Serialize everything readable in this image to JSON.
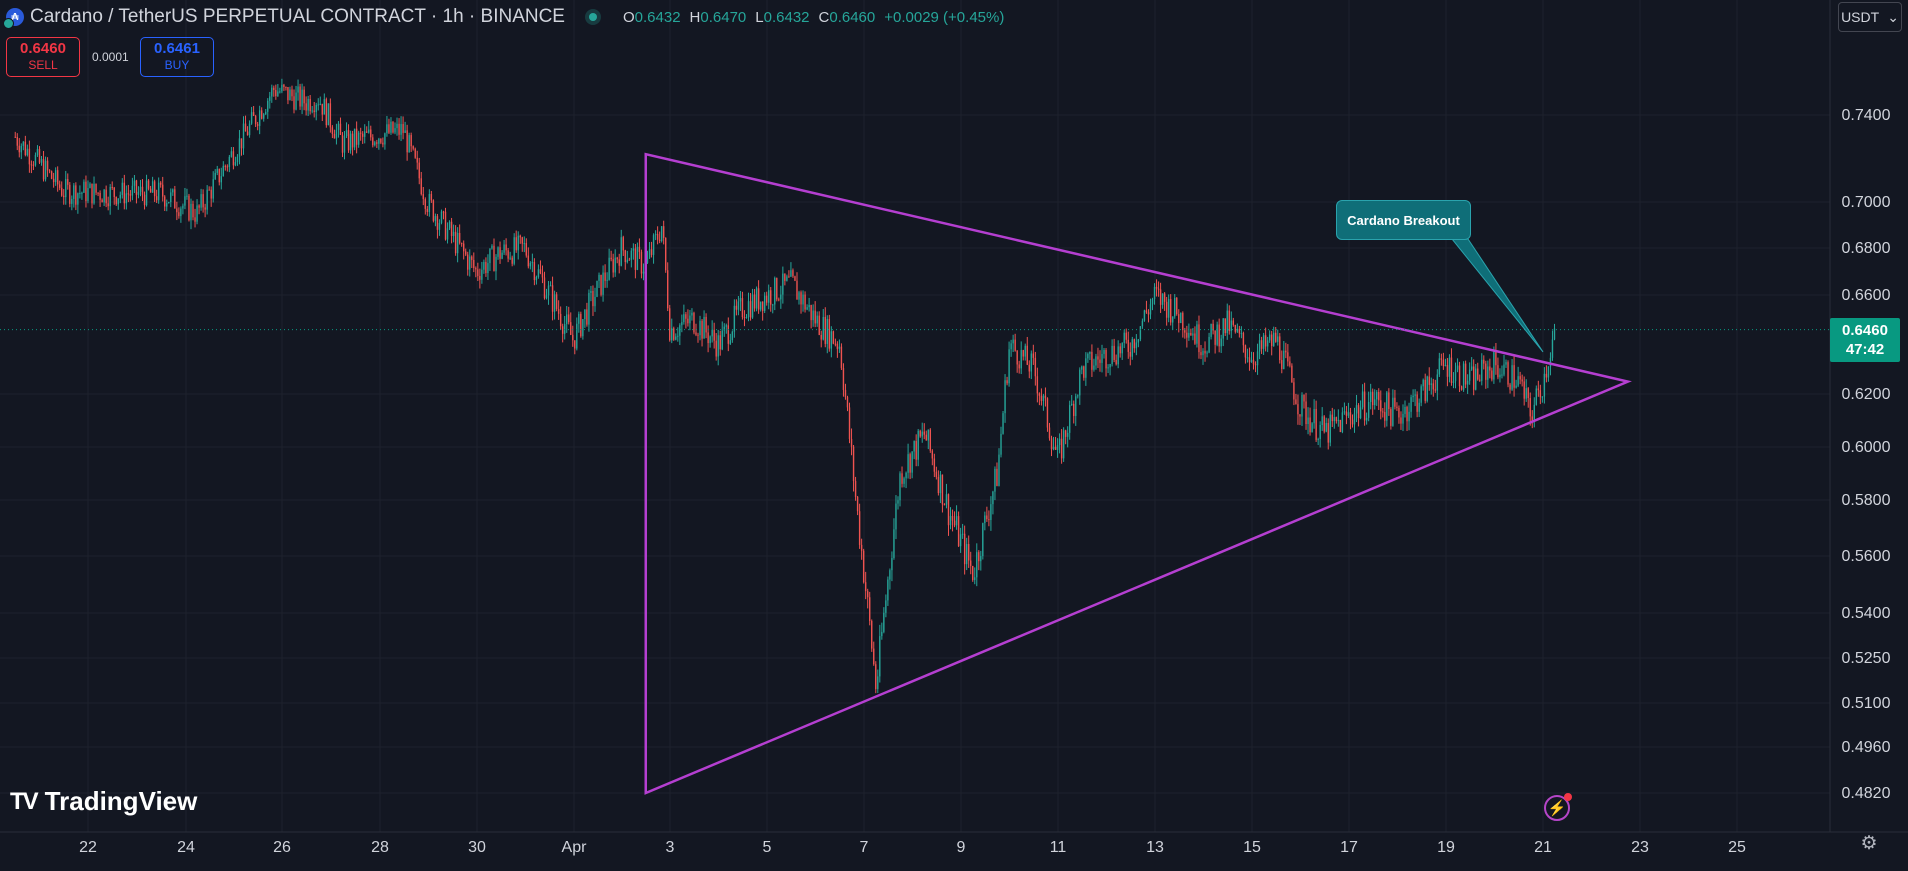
{
  "header": {
    "symbol_title": "Cardano / TetherUS PERPETUAL CONTRACT · 1h · BINANCE",
    "ohlc": [
      {
        "key": "O",
        "value": "0.6432"
      },
      {
        "key": "H",
        "value": "0.6470"
      },
      {
        "key": "L",
        "value": "0.6432"
      },
      {
        "key": "C",
        "value": "0.6460"
      }
    ],
    "change": "+0.0029 (+0.45%)"
  },
  "trade": {
    "sell_price": "0.6460",
    "sell_label": "SELL",
    "spread": "0.0001",
    "buy_price": "0.6461",
    "buy_label": "BUY"
  },
  "currency": {
    "label": "USDT",
    "chevron": "⌄"
  },
  "last_price": {
    "value": "0.6460",
    "countdown": "47:42"
  },
  "annotation": {
    "text": "Cardano Breakout"
  },
  "logo": {
    "text": "TradingView",
    "icon": "tradingview-logo"
  },
  "icons": {
    "alert": "lightning-alert-icon",
    "settings": "gear-icon"
  },
  "colors": {
    "background": "#131722",
    "up": "#26a69a",
    "down": "#ef5350",
    "pattern": "#b53fd1",
    "callout": "#0f6e78",
    "grid": "#1e222d"
  },
  "chart_data": {
    "type": "candlestick",
    "price_scale_labels": [
      "0.7400",
      "0.7000",
      "0.6800",
      "0.6600",
      "0.6200",
      "0.6000",
      "0.5800",
      "0.5600",
      "0.5400",
      "0.5250",
      "0.5100",
      "0.4960",
      "0.4820"
    ],
    "time_labels": [
      "22",
      "24",
      "26",
      "28",
      "30",
      "Apr",
      "3",
      "5",
      "7",
      "9",
      "11",
      "13",
      "15",
      "17",
      "19",
      "21",
      "23",
      "25"
    ],
    "last_price": 0.646,
    "price_path": [
      [
        "Mar 20 12:00",
        0.73
      ],
      [
        "Mar 21 12:00",
        0.705
      ],
      [
        "Mar 22 12:00",
        0.704
      ],
      [
        "Mar 23 12:00",
        0.704
      ],
      [
        "Mar 24 06:00",
        0.695
      ],
      [
        "Mar 24 22:00",
        0.72
      ],
      [
        "Mar 25 20:00",
        0.752
      ],
      [
        "Mar 26 12:00",
        0.746
      ],
      [
        "Mar 26 18:00",
        0.748
      ],
      [
        "Mar 27 06:00",
        0.727
      ],
      [
        "Mar 28 00:00",
        0.731
      ],
      [
        "Mar 28 12:00",
        0.733
      ],
      [
        "Mar 29 00:00",
        0.7
      ],
      [
        "Mar 30 00:00",
        0.67
      ],
      [
        "Mar 30 12:00",
        0.678
      ],
      [
        "Mar 31 00:00",
        0.68
      ],
      [
        "Mar 31 12:00",
        0.661
      ],
      [
        "Apr 1 00:00",
        0.642
      ],
      [
        "Apr 1 12:00",
        0.662
      ],
      [
        "Apr 2 00:00",
        0.68
      ],
      [
        "Apr 2 12:00",
        0.672
      ],
      [
        "Apr 2 20:00",
        0.69
      ],
      [
        "Apr 3 00:00",
        0.646
      ],
      [
        "Apr 3 12:00",
        0.65
      ],
      [
        "Apr 4 00:00",
        0.64
      ],
      [
        "Apr 4 12:00",
        0.655
      ],
      [
        "Apr 5 00:00",
        0.66
      ],
      [
        "Apr 5 12:00",
        0.665
      ],
      [
        "Apr 6 00:00",
        0.65
      ],
      [
        "Apr 6 12:00",
        0.64
      ],
      [
        "Apr 6 20:00",
        0.58
      ],
      [
        "Apr 7 06:00",
        0.515
      ],
      [
        "Apr 7 18:00",
        0.59
      ],
      [
        "Apr 8 06:00",
        0.605
      ],
      [
        "Apr 8 18:00",
        0.576
      ],
      [
        "Apr 9 06:00",
        0.554
      ],
      [
        "Apr 9 18:00",
        0.59
      ],
      [
        "Apr 10 00:00",
        0.64
      ],
      [
        "Apr 10 12:00",
        0.63
      ],
      [
        "Apr 11 00:00",
        0.595
      ],
      [
        "Apr 11 12:00",
        0.63
      ],
      [
        "Apr 12 00:00",
        0.636
      ],
      [
        "Apr 12 12:00",
        0.64
      ],
      [
        "Apr 13 00:00",
        0.66
      ],
      [
        "Apr 13 12:00",
        0.652
      ],
      [
        "Apr 14 00:00",
        0.64
      ],
      [
        "Apr 14 12:00",
        0.648
      ],
      [
        "Apr 15 00:00",
        0.635
      ],
      [
        "Apr 15 12:00",
        0.642
      ],
      [
        "Apr 16 00:00",
        0.615
      ],
      [
        "Apr 16 12:00",
        0.605
      ],
      [
        "Apr 17 00:00",
        0.612
      ],
      [
        "Apr 17 12:00",
        0.618
      ],
      [
        "Apr 18 00:00",
        0.612
      ],
      [
        "Apr 18 12:00",
        0.62
      ],
      [
        "Apr 19 00:00",
        0.632
      ],
      [
        "Apr 19 12:00",
        0.625
      ],
      [
        "Apr 20 00:00",
        0.632
      ],
      [
        "Apr 20 12:00",
        0.625
      ],
      [
        "Apr 20 18:00",
        0.612
      ],
      [
        "Apr 21 00:00",
        0.625
      ],
      [
        "Apr 21 06:00",
        0.646
      ]
    ],
    "drawings": {
      "triangle": [
        [
          "Apr 2 12:00",
          0.722
        ],
        [
          "Apr 2 12:00",
          0.482
        ],
        [
          "Apr 22 18:00",
          0.625
        ]
      ],
      "callout_anchor": [
        "Apr 21 00:00",
        0.637
      ]
    }
  }
}
